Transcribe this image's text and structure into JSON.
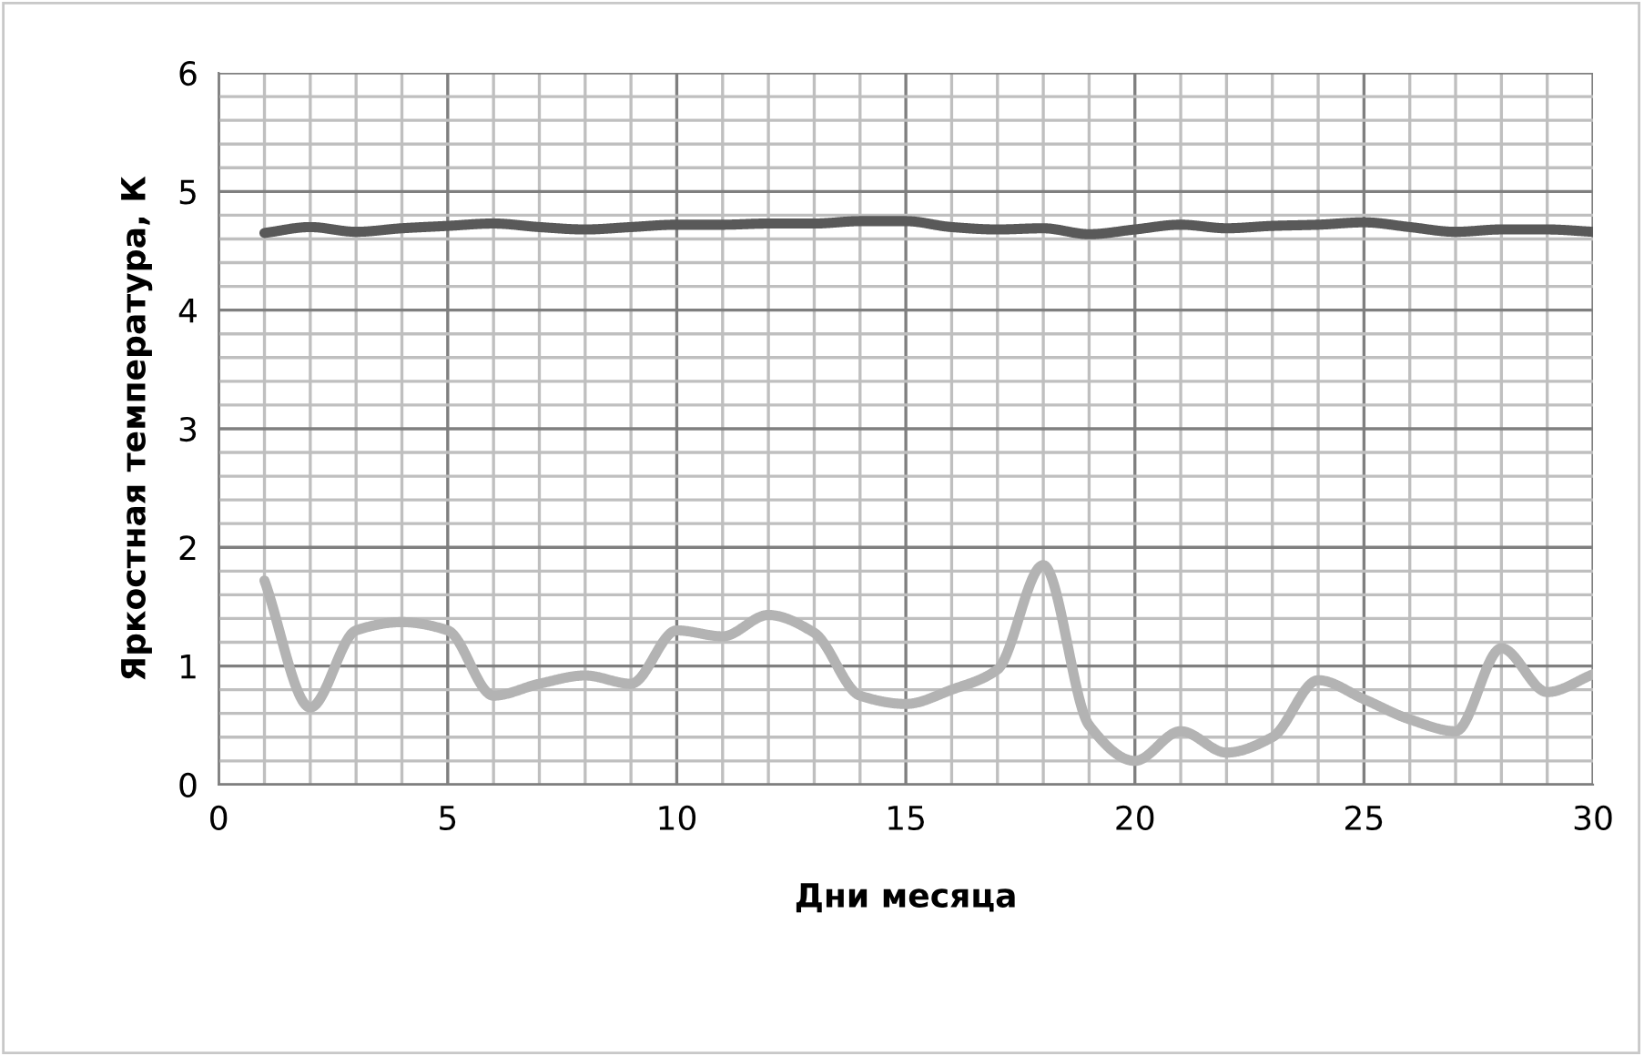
{
  "chart_data": {
    "type": "line",
    "xlabel": "Дни месяца",
    "ylabel": "Яркостная температура, К",
    "x": [
      1,
      2,
      3,
      4,
      5,
      6,
      7,
      8,
      9,
      10,
      11,
      12,
      13,
      14,
      15,
      16,
      17,
      18,
      19,
      20,
      21,
      22,
      23,
      24,
      25,
      26,
      27,
      28,
      29,
      30
    ],
    "series": [
      {
        "color": "#595959",
        "values": [
          4.65,
          4.7,
          4.66,
          4.69,
          4.71,
          4.73,
          4.7,
          4.68,
          4.7,
          4.72,
          4.72,
          4.73,
          4.73,
          4.75,
          4.75,
          4.7,
          4.68,
          4.69,
          4.64,
          4.68,
          4.72,
          4.69,
          4.71,
          4.72,
          4.74,
          4.7,
          4.66,
          4.68,
          4.68,
          4.66
        ]
      },
      {
        "color": "#b3b3b3",
        "values": [
          1.72,
          0.65,
          1.3,
          1.37,
          1.3,
          0.75,
          0.85,
          0.92,
          0.85,
          1.3,
          1.25,
          1.43,
          1.28,
          0.75,
          0.68,
          0.8,
          0.97,
          1.85,
          0.5,
          0.2,
          0.45,
          0.27,
          0.4,
          0.88,
          0.72,
          0.55,
          0.45,
          1.15,
          0.78,
          0.93
        ]
      }
    ],
    "xlim": [
      0,
      30
    ],
    "ylim": [
      0,
      6
    ],
    "xticks": [
      0,
      {
        "value": 1,
        "label": null
      },
      {
        "value": 2,
        "label": null
      },
      {
        "value": 3,
        "label": null
      },
      {
        "value": 4,
        "label": null
      },
      5,
      {
        "value": 6,
        "label": null
      },
      {
        "value": 7,
        "label": null
      },
      {
        "value": 8,
        "label": null
      },
      {
        "value": 9,
        "label": null
      },
      10,
      {
        "value": 11,
        "label": null
      },
      {
        "value": 12,
        "label": null
      },
      {
        "value": 13,
        "label": null
      },
      {
        "value": 14,
        "label": null
      },
      15,
      {
        "value": 16,
        "label": null
      },
      {
        "value": 17,
        "label": null
      },
      {
        "value": 18,
        "label": null
      },
      {
        "value": 19,
        "label": null
      },
      20,
      {
        "value": 21,
        "label": null
      },
      {
        "value": 22,
        "label": null
      },
      {
        "value": 23,
        "label": null
      },
      {
        "value": 24,
        "label": null
      },
      25,
      {
        "value": 26,
        "label": null
      },
      {
        "value": 27,
        "label": null
      },
      {
        "value": 28,
        "label": null
      },
      {
        "value": 29,
        "label": null
      },
      30
    ],
    "yticks": [
      0,
      {
        "value": 0.2,
        "label": null
      },
      {
        "value": 0.4,
        "label": null
      },
      {
        "value": 0.6,
        "label": null
      },
      {
        "value": 0.8,
        "label": null
      },
      1,
      {
        "value": 1.2,
        "label": null
      },
      {
        "value": 1.4,
        "label": null
      },
      {
        "value": 1.6,
        "label": null
      },
      {
        "value": 1.8,
        "label": null
      },
      2,
      {
        "value": 2.2,
        "label": null
      },
      {
        "value": 2.4,
        "label": null
      },
      {
        "value": 2.6,
        "label": null
      },
      {
        "value": 2.8,
        "label": null
      },
      3,
      {
        "value": 3.2,
        "label": null
      },
      {
        "value": 3.4,
        "label": null
      },
      {
        "value": 3.6,
        "label": null
      },
      {
        "value": 3.8,
        "label": null
      },
      4,
      {
        "value": 4.2,
        "label": null
      },
      {
        "value": 4.4,
        "label": null
      },
      {
        "value": 4.6,
        "label": null
      },
      {
        "value": 4.8,
        "label": null
      },
      5,
      {
        "value": 5.2,
        "label": null
      },
      {
        "value": 5.4,
        "label": null
      },
      {
        "value": 5.6,
        "label": null
      },
      {
        "value": 5.8,
        "label": null
      },
      6
    ],
    "grid": true,
    "marker": "none",
    "line_style": "solid",
    "legend": false
  }
}
